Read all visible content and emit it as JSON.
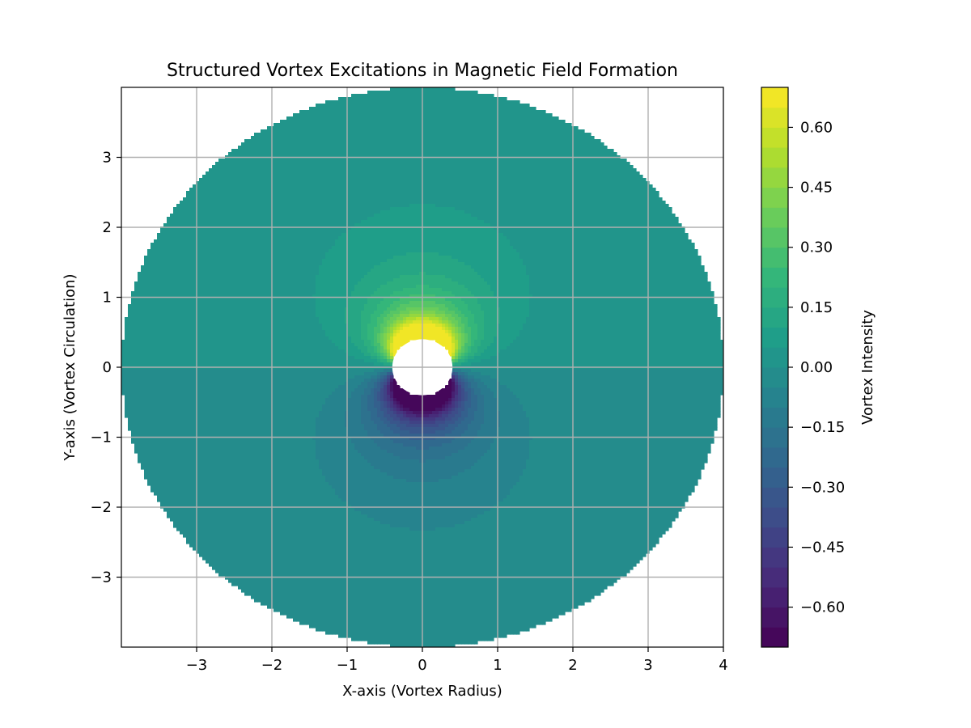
{
  "chart_data": {
    "type": "contourf",
    "title": "Structured Vortex Excitations in Magnetic Field Formation",
    "xlabel": "X-axis (Vortex Radius)",
    "ylabel": "Y-axis (Vortex Circulation)",
    "xlim": [
      -4,
      4
    ],
    "ylim": [
      -4,
      4
    ],
    "x_ticks": [
      -3,
      -2,
      -1,
      0,
      1,
      2,
      3,
      4
    ],
    "x_tick_labels": [
      "−3",
      "−2",
      "−1",
      "0",
      "1",
      "2",
      "3",
      "4"
    ],
    "y_ticks": [
      -3,
      -2,
      -1,
      0,
      1,
      2,
      3
    ],
    "y_tick_labels": [
      "−3",
      "−2",
      "−1",
      "0",
      "1",
      "2",
      "3"
    ],
    "grid": true,
    "colormap": "viridis",
    "domain": {
      "outer_radius": 4,
      "inner_radius": 0.4
    },
    "field": {
      "form": "y / (x^2 + y^2)^(3/2) * 0.27, clipped to colorbar range",
      "peak_value": 0.68,
      "peak_location": [
        0,
        0.4
      ]
    },
    "colorbar": {
      "label": "Vortex Intensity",
      "range": [
        -0.7,
        0.7
      ],
      "levels": 28,
      "ticks": [
        0.6,
        0.45,
        0.3,
        0.15,
        0.0,
        -0.15,
        -0.3,
        -0.45,
        -0.6
      ],
      "tick_labels": [
        "0.60",
        "0.45",
        "0.30",
        "0.15",
        "0.00",
        "−0.15",
        "−0.30",
        "−0.45",
        "−0.60"
      ]
    }
  }
}
